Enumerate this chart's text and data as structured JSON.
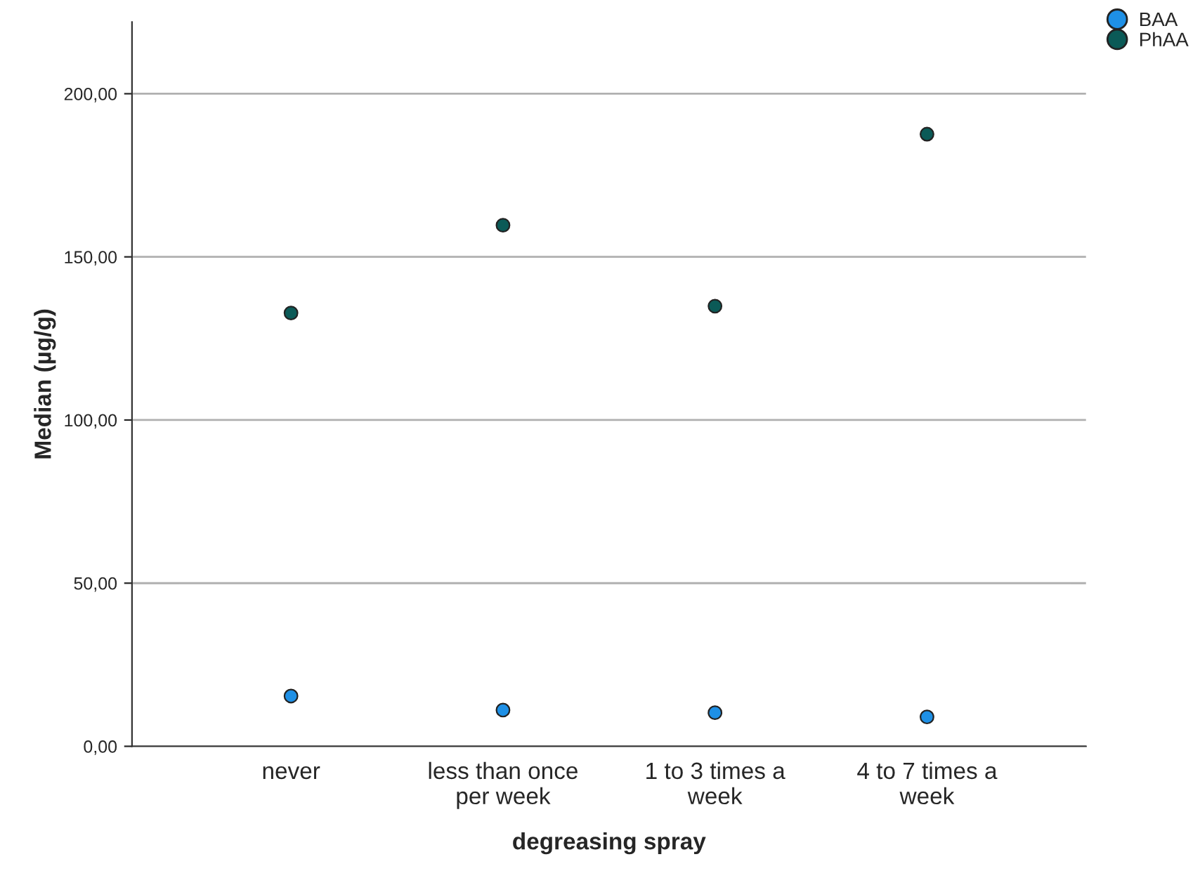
{
  "chart_data": {
    "type": "scatter",
    "xlabel": "degreasing spray",
    "ylabel": "Median (µg/g)",
    "categories": [
      "never",
      "less than once\nper week",
      "1 to 3 times a\nweek",
      "4 to 7 times a\nweek"
    ],
    "series": [
      {
        "name": "BAA",
        "color": "#1e90e6",
        "values": [
          15.4,
          11.1,
          10.3,
          9.0
        ]
      },
      {
        "name": "PhAA",
        "color": "#0b5a57",
        "values": [
          132.8,
          159.7,
          134.9,
          187.6
        ]
      }
    ],
    "ylim": [
      0,
      222
    ],
    "yticks": [
      {
        "value": 0,
        "label": "0,00"
      },
      {
        "value": 50,
        "label": "50,00"
      },
      {
        "value": 100,
        "label": "100,00"
      },
      {
        "value": 150,
        "label": "150,00"
      },
      {
        "value": 200,
        "label": "200,00"
      }
    ],
    "grid": "y",
    "legend": "top right",
    "marker": "circle"
  }
}
